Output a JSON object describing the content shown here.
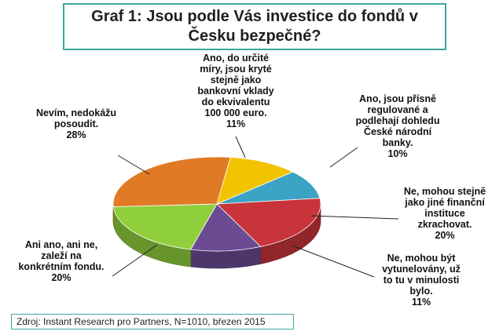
{
  "title": "Graf 1: Jsou podle Vás investice do fondů v\nČesku bezpečné?",
  "source": "Zdroj: Instant Research pro Partners, N=1010, březen 2015",
  "colors": {
    "frame": "#3aa6a0",
    "slices": [
      "#f2c300",
      "#3ba3c4",
      "#c8343a",
      "#6b4c93",
      "#8fcf3c",
      "#e07a24"
    ]
  },
  "chart_data": {
    "type": "pie",
    "style": "3d",
    "title": "Graf 1: Jsou podle Vás investice do fondů v Česku bezpečné?",
    "slices": [
      {
        "label": "Ano, do určité míry, jsou kryté stejně jako bankovní vklady do ekvivalentu 100 000 euro.",
        "value": 11
      },
      {
        "label": "Ano, jsou přísně regulované a podlehají dohledu České národní banky.",
        "value": 10
      },
      {
        "label": "Ne, mohou stejně jako jiné finanční instituce zkrachovat.",
        "value": 20
      },
      {
        "label": "Ne, mohou být vytunelovány, už to tu v minulosti bylo.",
        "value": 11
      },
      {
        "label": "Ani ano, ani ne, zaleží na konkrétním fondu.",
        "value": 20
      },
      {
        "label": "Nevím, nedokážu posoudit.",
        "value": 28
      }
    ],
    "label_lines": [
      [
        "Ano, do určité",
        "míry, jsou kryté",
        "stejně jako",
        "bankovní vklady",
        "do ekvivalentu",
        "100 000 euro.",
        "11%"
      ],
      [
        "Ano, jsou přísně",
        "regulované a",
        "podlehají dohledu",
        "České národní",
        "banky.",
        "10%"
      ],
      [
        "Ne, mohou stejně",
        "jako jiné finanční",
        "instituce",
        "zkrachovat.",
        "20%"
      ],
      [
        "Ne, mohou být",
        "vytunelovány, už",
        "to tu v minulosti",
        "bylo.",
        "11%"
      ],
      [
        "Ani ano, ani ne,",
        "zaleží na",
        "konkrétním fondu.",
        "20%"
      ],
      [
        "Nevím, nedokážu",
        "posoudit.",
        "28%"
      ]
    ]
  }
}
